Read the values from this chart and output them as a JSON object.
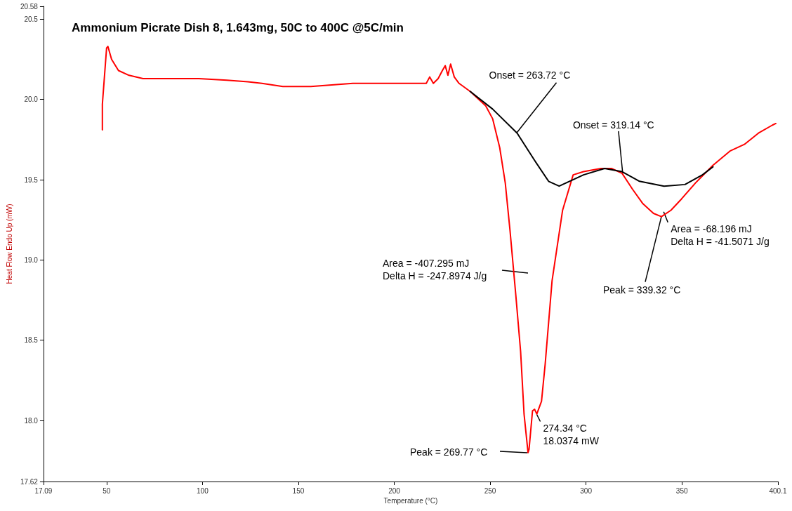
{
  "chart_data": {
    "type": "line",
    "title": "Ammonium Picrate Dish 8, 1.643mg, 50C to 400C @5C/min",
    "xlabel": "Temperature (°C)",
    "ylabel": "Heat Flow Endo Up (mW)",
    "xlim": [
      17.09,
      400.1
    ],
    "xticks": [
      17.09,
      50,
      100,
      150,
      200,
      250,
      300,
      350,
      400.1
    ],
    "ylim": [
      17.62,
      20.58
    ],
    "yticks": [
      17.62,
      {
        "value": 18,
        "label": "18.0"
      },
      18.5,
      {
        "value": 19,
        "label": "19.0"
      },
      19.5,
      {
        "value": 20,
        "label": "20.0"
      },
      20.5,
      20.58
    ],
    "grid": false,
    "marker": "none",
    "line_style": "solid",
    "series": [
      {
        "color": "#ff0000",
        "x": [
          47.8,
          47.8,
          50,
          50.7,
          52.6,
          56.2,
          61.7,
          69,
          87.2,
          98.1,
          112.7,
          123.7,
          131,
          141.9,
          156.5,
          167.4,
          178.4,
          200.3,
          216.7,
          218.5,
          220.4,
          222.9,
          225.1,
          226.6,
          228,
          229.4,
          231.3,
          233.8,
          239.6,
          247.7,
          251.3,
          255,
          257.9,
          260.4,
          263.4,
          265.9,
          267.7,
          269.77,
          270.3,
          272.1,
          273.2,
          274.34,
          276.8,
          278.7,
          282.3,
          287.8,
          293.3,
          298.7,
          307.8,
          313.3,
          318.8,
          324.3,
          329.7,
          335.2,
          339.32,
          344.3,
          349.8,
          357.1,
          366.2,
          375.3,
          382.6,
          389.9,
          397.2,
          399
        ],
        "values": [
          19.81,
          19.97,
          20.32,
          20.33,
          20.25,
          20.18,
          20.15,
          20.13,
          20.13,
          20.13,
          20.12,
          20.11,
          20.1,
          20.08,
          20.08,
          20.09,
          20.1,
          20.1,
          20.1,
          20.14,
          20.1,
          20.13,
          20.18,
          20.21,
          20.15,
          20.22,
          20.14,
          20.1,
          20.05,
          19.96,
          19.88,
          19.7,
          19.48,
          19.18,
          18.78,
          18.43,
          18.04,
          17.8,
          17.82,
          18.06,
          18.07,
          18.04,
          18.12,
          18.35,
          18.87,
          19.31,
          19.53,
          19.55,
          19.57,
          19.57,
          19.54,
          19.44,
          19.35,
          19.29,
          19.27,
          19.31,
          19.38,
          19.48,
          19.59,
          19.68,
          19.72,
          19.79,
          19.84,
          19.85
        ]
      },
      {
        "color": "#000000",
        "x": [
          239.6,
          251.3,
          264.1,
          273.2,
          280.5,
          286,
          298.7,
          309.7,
          318.8,
          327.9,
          340.7,
          351.6,
          360.7,
          366.2
        ],
        "values": [
          20.05,
          19.94,
          19.79,
          19.62,
          19.49,
          19.46,
          19.53,
          19.57,
          19.55,
          19.49,
          19.46,
          19.47,
          19.53,
          19.58
        ]
      }
    ],
    "annotations": [
      {
        "text": "Onset = 263.72 °C",
        "x": 263.72,
        "y": 19.79
      },
      {
        "text": "Onset = 319.14 °C",
        "x": 319.14,
        "y": 19.54
      },
      "Area = -407.295 mJ\nDelta H = -247.8974 J/g",
      {
        "text": "Area = -68.196 mJ\nDelta H = -41.5071 J/g",
        "x": 340.5,
        "y": 19.3
      },
      {
        "text": "Peak = 339.32 °C",
        "x": 339.32,
        "y": 19.27
      },
      {
        "text": "274.34 °C\n18.0374 mW",
        "x": 274.34,
        "y": 18.0374
      },
      "Peak = 269.77 °C"
    ]
  }
}
